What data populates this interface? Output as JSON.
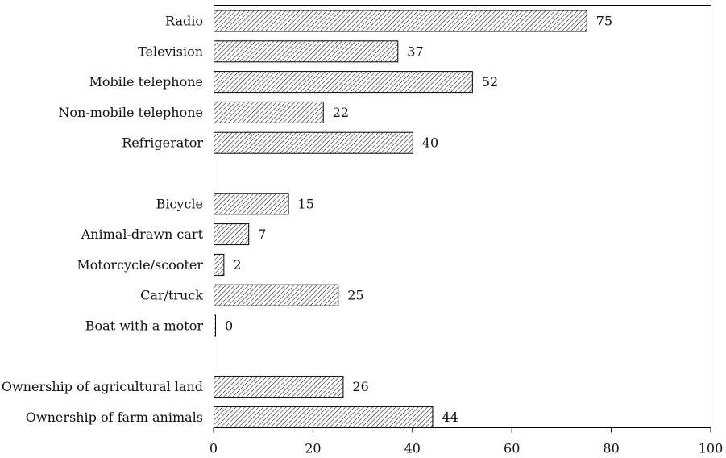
{
  "chart_data": {
    "type": "bar",
    "orientation": "horizontal",
    "categories": [
      "Radio",
      "Television",
      "Mobile telephone",
      "Non-mobile telephone",
      "Refrigerator",
      "",
      "Bicycle",
      "Animal-drawn cart",
      "Motorcycle/scooter",
      "Car/truck",
      "Boat with a motor",
      "",
      "Ownership of agricultural land",
      "Ownership of farm animals"
    ],
    "values": [
      75,
      37,
      52,
      22,
      40,
      null,
      15,
      7,
      2,
      25,
      0,
      null,
      26,
      44
    ],
    "data_labels": [
      "75",
      "37",
      "52",
      "22",
      "40",
      "",
      "15",
      "7",
      "2",
      "25",
      "0",
      "",
      "26",
      "44"
    ],
    "xlim": [
      0,
      100
    ],
    "xticks": [
      "0",
      "20",
      "40",
      "60",
      "80",
      "100"
    ],
    "title": "",
    "xlabel": "",
    "ylabel": "",
    "grid": false,
    "legend": "none",
    "bar_fill": "diagonal-hatch",
    "colors": {
      "bar_stroke": "#000000",
      "hatch": "#000000",
      "background": "#ffffff",
      "text": "#111111"
    }
  }
}
